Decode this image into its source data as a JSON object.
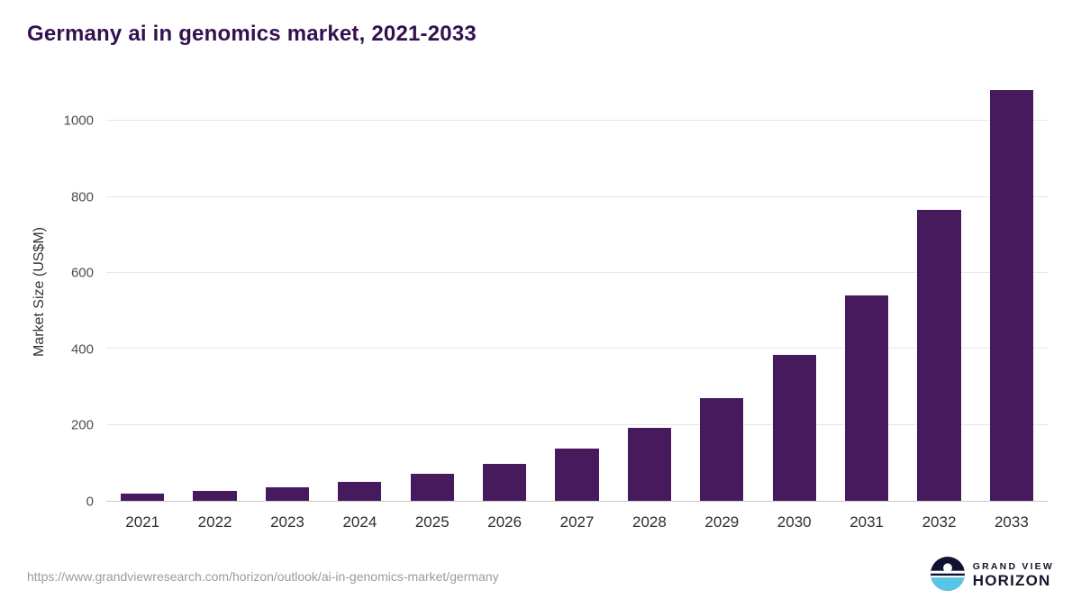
{
  "page": {
    "title": "Germany ai in genomics market, 2021-2033",
    "source_url": "https://www.grandviewresearch.com/horizon/outlook/ai-in-genomics-market/germany",
    "brand": {
      "line1": "GRAND VIEW",
      "line2": "HORIZON"
    }
  },
  "colors": {
    "title": "#33104f",
    "bar": "#471a5e",
    "gridline": "#e7e7e7",
    "logo_navy": "#101233",
    "logo_cyan": "#55c6e8"
  },
  "chart_data": {
    "type": "bar",
    "title": "Germany ai in genomics market, 2021-2033",
    "xlabel": "",
    "ylabel": "Market Size (US$M)",
    "categories": [
      "2021",
      "2022",
      "2023",
      "2024",
      "2025",
      "2026",
      "2027",
      "2028",
      "2029",
      "2030",
      "2031",
      "2032",
      "2033"
    ],
    "values": [
      18,
      26,
      36,
      50,
      70,
      98,
      137,
      192,
      271,
      384,
      540,
      765,
      1082
    ],
    "yticks": [
      0,
      200,
      400,
      600,
      800,
      1000
    ],
    "ylim": [
      0,
      1100
    ],
    "grid": true,
    "legend": false
  }
}
